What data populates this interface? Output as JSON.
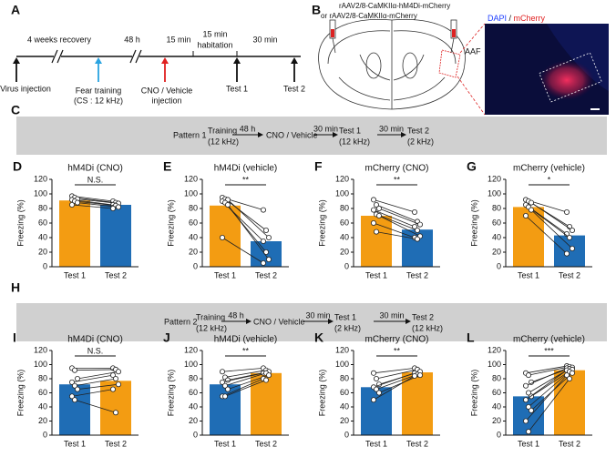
{
  "panel_a": {
    "label": "A",
    "intervals": [
      "4 weeks recovery",
      "48 h",
      "15 min",
      "15 min",
      "habitation",
      "30 min"
    ],
    "events": [
      "Virus injection",
      "Fear training",
      "(CS : 12 kHz)",
      "CNO / Vehicle",
      "injection",
      "Test 1",
      "Test 2"
    ]
  },
  "panel_b": {
    "label": "B",
    "virus_1": "rAAV2/8-CaMKIIα-hM4Di-mCherry",
    "virus_2": "or rAAV2/8-CaMKIIα-mCherry",
    "region": "AAF",
    "stain_1": "DAPI",
    "stain_sep": " / ",
    "stain_2": "mCherry"
  },
  "patterns": [
    {
      "label": "C",
      "name": "Pattern 1",
      "steps": [
        [
          "Training",
          "(12 kHz)"
        ],
        [
          "CNO / Vehicle"
        ],
        [
          "Test 1",
          "(12 kHz)"
        ],
        [
          "Test 2",
          "(2 kHz)"
        ]
      ],
      "intervals": [
        "48 h",
        "30 min",
        "30 min"
      ]
    },
    {
      "label": "H",
      "name": "Pattern 2",
      "steps": [
        [
          "Training",
          "(12 kHz)"
        ],
        [
          "CNO / Vehicle"
        ],
        [
          "Test 1",
          "(2 kHz)"
        ],
        [
          "Test 2",
          "(12 kHz)"
        ]
      ],
      "intervals": [
        "48 h",
        "30 min",
        "30 min"
      ]
    }
  ],
  "chart_data": [
    {
      "type": "bar",
      "panel": "D",
      "title": "hM4Di (CNO)",
      "ylabel": "Freezing (%)",
      "categories": [
        "Test 1",
        "Test 2"
      ],
      "values": [
        91,
        85
      ],
      "colors": [
        "#f39c12",
        "#1f6db5"
      ],
      "points": [
        [
          97,
          90
        ],
        [
          95,
          88
        ],
        [
          93,
          87
        ],
        [
          92,
          85
        ],
        [
          90,
          84
        ],
        [
          88,
          82
        ],
        [
          85,
          80
        ]
      ],
      "significance": "N.S.",
      "ylim": [
        0,
        120
      ],
      "yticks": [
        0,
        20,
        40,
        60,
        80,
        100,
        120
      ]
    },
    {
      "type": "bar",
      "panel": "E",
      "title": "hM4Di (vehicle)",
      "ylabel": "Freezing (%)",
      "categories": [
        "Test 1",
        "Test 2"
      ],
      "values": [
        84,
        35
      ],
      "colors": [
        "#f39c12",
        "#1f6db5"
      ],
      "points": [
        [
          95,
          78
        ],
        [
          93,
          50
        ],
        [
          92,
          40
        ],
        [
          90,
          35
        ],
        [
          88,
          20
        ],
        [
          85,
          10
        ],
        [
          40,
          5
        ]
      ],
      "significance": "**",
      "ylim": [
        0,
        120
      ],
      "yticks": [
        0,
        20,
        40,
        60,
        80,
        100,
        120
      ]
    },
    {
      "type": "bar",
      "panel": "F",
      "title": "mCherry (CNO)",
      "ylabel": "Freezing (%)",
      "categories": [
        "Test 1",
        "Test 2"
      ],
      "values": [
        70,
        51
      ],
      "colors": [
        "#f39c12",
        "#1f6db5"
      ],
      "points": [
        [
          92,
          75
        ],
        [
          85,
          62
        ],
        [
          80,
          58
        ],
        [
          78,
          55
        ],
        [
          72,
          50
        ],
        [
          70,
          42
        ],
        [
          60,
          40
        ],
        [
          48,
          38
        ]
      ],
      "significance": "**",
      "ylim": [
        0,
        120
      ],
      "yticks": [
        0,
        20,
        40,
        60,
        80,
        100,
        120
      ]
    },
    {
      "type": "bar",
      "panel": "G",
      "title": "mCherry (vehicle)",
      "ylabel": "Freezing (%)",
      "categories": [
        "Test 1",
        "Test 2"
      ],
      "values": [
        82,
        43
      ],
      "colors": [
        "#f39c12",
        "#1f6db5"
      ],
      "points": [
        [
          92,
          75
        ],
        [
          90,
          55
        ],
        [
          88,
          50
        ],
        [
          85,
          45
        ],
        [
          82,
          40
        ],
        [
          78,
          25
        ],
        [
          70,
          18
        ]
      ],
      "significance": "*",
      "ylim": [
        0,
        120
      ],
      "yticks": [
        0,
        20,
        40,
        60,
        80,
        100,
        120
      ]
    },
    {
      "type": "bar",
      "panel": "I",
      "title": "hM4Di (CNO)",
      "ylabel": "Freezing (%)",
      "categories": [
        "Test 1",
        "Test 2"
      ],
      "values": [
        72,
        77
      ],
      "colors": [
        "#1f6db5",
        "#f39c12"
      ],
      "points": [
        [
          95,
          95
        ],
        [
          92,
          93
        ],
        [
          80,
          90
        ],
        [
          75,
          85
        ],
        [
          70,
          80
        ],
        [
          65,
          72
        ],
        [
          55,
          65
        ],
        [
          50,
          32
        ]
      ],
      "significance": "N.S.",
      "ylim": [
        0,
        120
      ],
      "yticks": [
        0,
        20,
        40,
        60,
        80,
        100,
        120
      ]
    },
    {
      "type": "bar",
      "panel": "J",
      "title": "hM4Di (vehicle)",
      "ylabel": "Freezing (%)",
      "categories": [
        "Test 1",
        "Test 2"
      ],
      "values": [
        72,
        88
      ],
      "colors": [
        "#1f6db5",
        "#f39c12"
      ],
      "points": [
        [
          90,
          95
        ],
        [
          82,
          92
        ],
        [
          78,
          90
        ],
        [
          75,
          88
        ],
        [
          70,
          88
        ],
        [
          65,
          85
        ],
        [
          55,
          80
        ],
        [
          55,
          78
        ]
      ],
      "significance": "**",
      "ylim": [
        0,
        120
      ],
      "yticks": [
        0,
        20,
        40,
        60,
        80,
        100,
        120
      ]
    },
    {
      "type": "bar",
      "panel": "K",
      "title": "mCherry (CNO)",
      "ylabel": "Freezing (%)",
      "categories": [
        "Test 1",
        "Test 2"
      ],
      "values": [
        68,
        89
      ],
      "colors": [
        "#1f6db5",
        "#f39c12"
      ],
      "points": [
        [
          88,
          95
        ],
        [
          80,
          93
        ],
        [
          72,
          90
        ],
        [
          68,
          88
        ],
        [
          65,
          86
        ],
        [
          60,
          85
        ],
        [
          50,
          84
        ]
      ],
      "significance": "**",
      "ylim": [
        0,
        120
      ],
      "yticks": [
        0,
        20,
        40,
        60,
        80,
        100,
        120
      ]
    },
    {
      "type": "bar",
      "panel": "L",
      "title": "mCherry (vehicle)",
      "ylabel": "Freezing (%)",
      "categories": [
        "Test 1",
        "Test 2"
      ],
      "values": [
        55,
        92
      ],
      "colors": [
        "#1f6db5",
        "#f39c12"
      ],
      "points": [
        [
          88,
          98
        ],
        [
          85,
          97
        ],
        [
          75,
          96
        ],
        [
          70,
          95
        ],
        [
          60,
          94
        ],
        [
          55,
          93
        ],
        [
          50,
          92
        ],
        [
          40,
          90
        ],
        [
          35,
          88
        ],
        [
          20,
          85
        ],
        [
          5,
          80
        ]
      ],
      "significance": "***",
      "ylim": [
        0,
        120
      ],
      "yticks": [
        0,
        20,
        40,
        60,
        80,
        100,
        120
      ]
    }
  ]
}
